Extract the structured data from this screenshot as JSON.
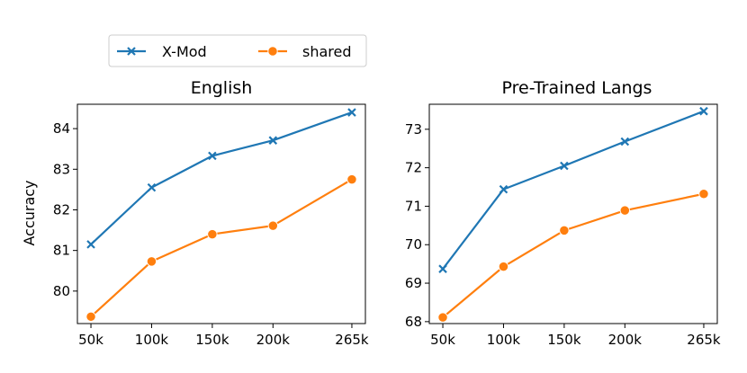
{
  "legend": {
    "items": [
      {
        "label": "X-Mod",
        "color": "#1f77b4",
        "marker": "x"
      },
      {
        "label": "shared",
        "color": "#ff7f0e",
        "marker": "o"
      }
    ]
  },
  "chart_data": [
    {
      "type": "line",
      "title": "English",
      "xlabel": "",
      "ylabel": "Accuracy",
      "categories": [
        "50k",
        "100k",
        "150k",
        "200k",
        "265k"
      ],
      "x": [
        50,
        100,
        150,
        200,
        265
      ],
      "ylim": [
        79.2,
        84.6
      ],
      "yticks": [
        80,
        81,
        82,
        83,
        84
      ],
      "grid": false,
      "series": [
        {
          "name": "X-Mod",
          "values": [
            81.15,
            82.55,
            83.33,
            83.71,
            84.4
          ],
          "color": "#1f77b4",
          "marker": "x"
        },
        {
          "name": "shared",
          "values": [
            79.37,
            80.73,
            81.4,
            81.61,
            82.75
          ],
          "color": "#ff7f0e",
          "marker": "o"
        }
      ]
    },
    {
      "type": "line",
      "title": "Pre-Trained Langs",
      "xlabel": "",
      "ylabel": "",
      "categories": [
        "50k",
        "100k",
        "150k",
        "200k",
        "265k"
      ],
      "x": [
        50,
        100,
        150,
        200,
        265
      ],
      "ylim": [
        67.95,
        73.65
      ],
      "yticks": [
        68,
        69,
        70,
        71,
        72,
        73
      ],
      "grid": false,
      "series": [
        {
          "name": "X-Mod",
          "values": [
            69.37,
            71.44,
            72.05,
            72.68,
            73.47
          ],
          "color": "#1f77b4",
          "marker": "x"
        },
        {
          "name": "shared",
          "values": [
            68.11,
            69.43,
            70.37,
            70.89,
            71.32
          ],
          "color": "#ff7f0e",
          "marker": "o"
        }
      ]
    }
  ]
}
